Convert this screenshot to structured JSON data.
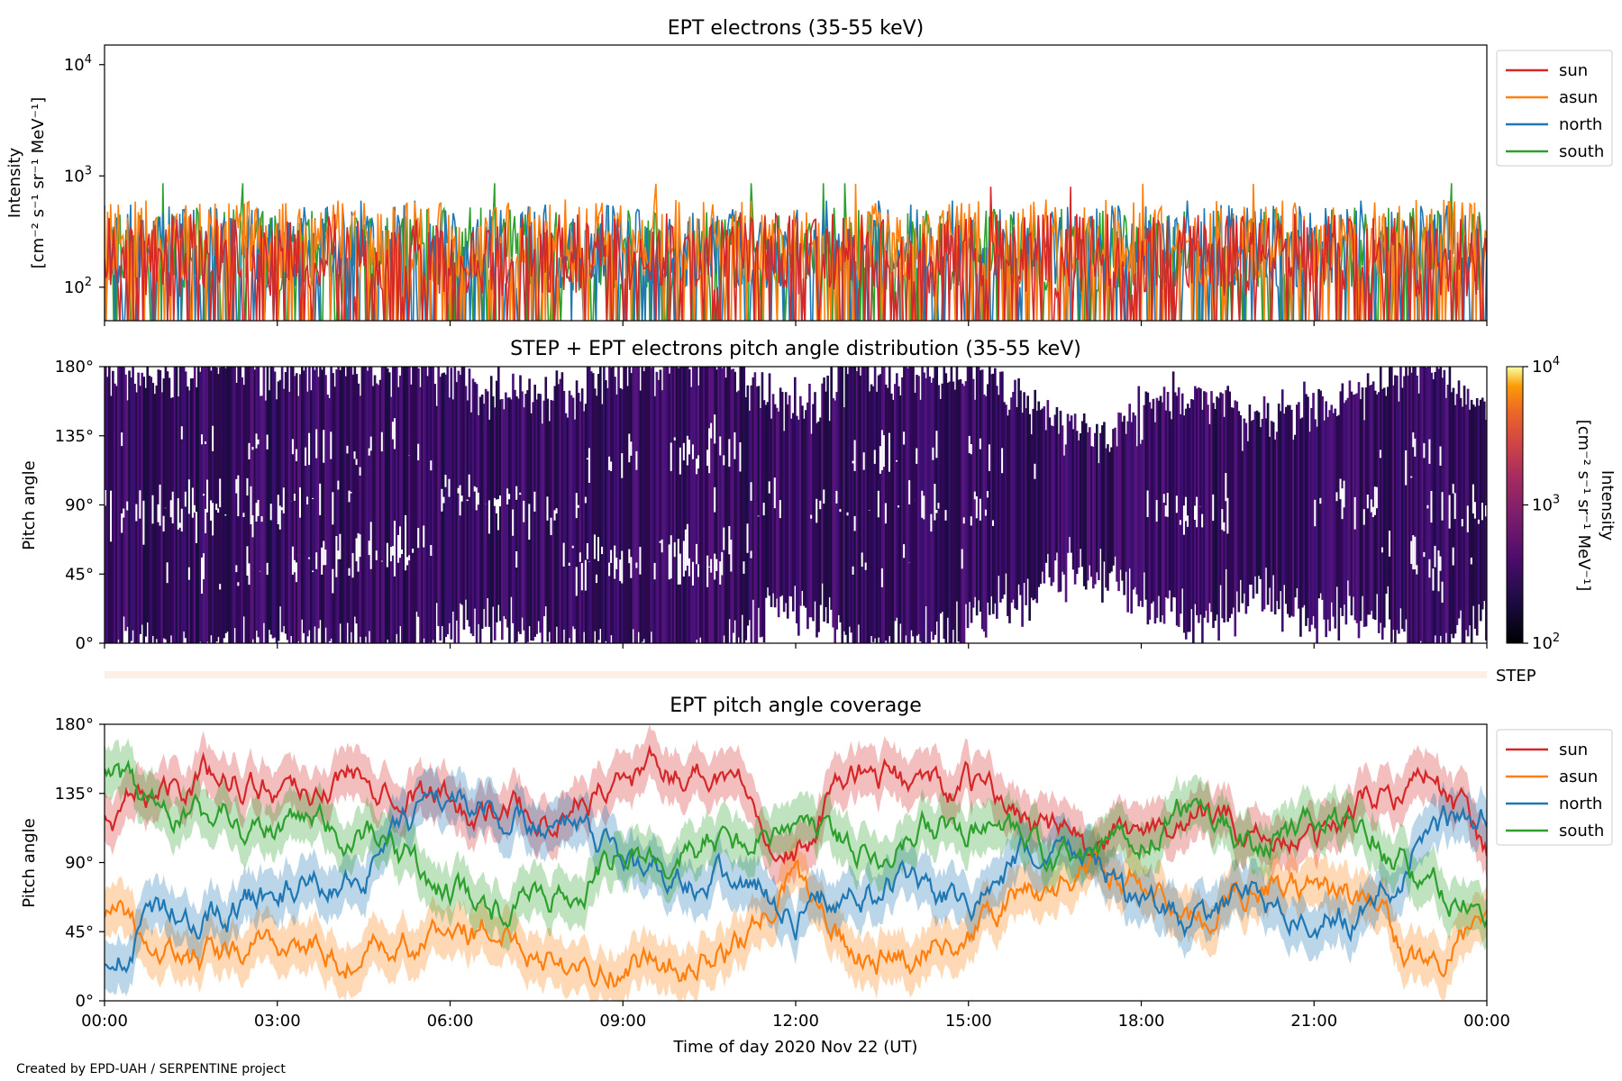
{
  "colors": {
    "sun": "#d62728",
    "asun": "#ff7f0e",
    "north": "#1f77b4",
    "south": "#2ca02c"
  },
  "footer": {
    "credit": "Created by EPD-UAH / SERPENTINE project"
  },
  "x_axis": {
    "label": "Time of day 2020 Nov 22 (UT)",
    "ticks": [
      "00:00",
      "03:00",
      "06:00",
      "09:00",
      "12:00",
      "15:00",
      "18:00",
      "21:00",
      "00:00"
    ]
  },
  "chart_data": [
    {
      "type": "line",
      "title": "EPT electrons (35-55 keV)",
      "ylabel_line1": "Intensity",
      "ylabel_line2": "[cm⁻² s⁻¹ sr⁻¹ MeV⁻¹]",
      "yscale": "log",
      "ylim": [
        50,
        15000
      ],
      "yticks": [
        {
          "value": 100,
          "base": "10",
          "exp": "2"
        },
        {
          "value": 1000,
          "base": "10",
          "exp": "3"
        },
        {
          "value": 10000,
          "base": "10",
          "exp": "4"
        }
      ],
      "xlim_hours": [
        0,
        24
      ],
      "legend": [
        "sun",
        "asun",
        "north",
        "south"
      ],
      "legend_position": "outside-right",
      "series_summary": [
        {
          "name": "sun",
          "typical": 150,
          "peak": 800
        },
        {
          "name": "asun",
          "typical": 200,
          "peak": 850
        },
        {
          "name": "north",
          "typical": 180,
          "peak": 600
        },
        {
          "name": "south",
          "typical": 170,
          "peak": 860
        }
      ]
    },
    {
      "type": "heatmap",
      "title": "STEP + EPT electrons pitch angle distribution (35-55 keV)",
      "ylabel": "Pitch angle",
      "ylim": [
        0,
        180
      ],
      "yticks": [
        "0°",
        "45°",
        "90°",
        "135°",
        "180°"
      ],
      "colorbar": {
        "label_line1": "Intensity",
        "label_line2": "[cm⁻² s⁻¹ sr⁻¹ MeV⁻¹]",
        "scale": "log",
        "range": [
          100,
          10000
        ],
        "ticks": [
          {
            "base": "10",
            "exp": "2"
          },
          {
            "base": "10",
            "exp": "3"
          },
          {
            "base": "10",
            "exp": "4"
          }
        ],
        "colormap": "inferno"
      }
    },
    {
      "type": "line",
      "title": "",
      "strip_label": "STEP"
    },
    {
      "type": "line",
      "title": "EPT pitch angle coverage",
      "ylabel": "Pitch angle",
      "ylim": [
        0,
        180
      ],
      "yticks": [
        "0°",
        "45°",
        "90°",
        "135°",
        "180°"
      ],
      "legend": [
        "sun",
        "asun",
        "north",
        "south"
      ],
      "legend_position": "outside-right",
      "series": [
        {
          "name": "sun",
          "x_hours": [
            0,
            1,
            2,
            3,
            4,
            5,
            6,
            7,
            8,
            9,
            10,
            11,
            12,
            13,
            14,
            15,
            16,
            17,
            18,
            19,
            20,
            21,
            22,
            23,
            24
          ],
          "values": [
            115,
            140,
            150,
            140,
            145,
            150,
            130,
            120,
            125,
            145,
            150,
            150,
            95,
            150,
            140,
            140,
            120,
            100,
            110,
            120,
            110,
            100,
            130,
            150,
            100
          ]
        },
        {
          "name": "asun",
          "x_hours": [
            0,
            1,
            2,
            3,
            4,
            5,
            6,
            7,
            8,
            9,
            10,
            11,
            12,
            13,
            14,
            15,
            16,
            17,
            18,
            19,
            20,
            21,
            22,
            23,
            24
          ],
          "values": [
            60,
            30,
            25,
            40,
            30,
            30,
            45,
            45,
            30,
            25,
            25,
            35,
            80,
            30,
            35,
            45,
            70,
            85,
            80,
            50,
            80,
            70,
            60,
            20,
            50
          ]
        },
        {
          "name": "north",
          "x_hours": [
            0,
            1,
            2,
            3,
            4,
            5,
            6,
            7,
            8,
            9,
            10,
            11,
            12,
            13,
            14,
            15,
            16,
            17,
            18,
            19,
            20,
            21,
            22,
            23,
            24
          ],
          "values": [
            30,
            55,
            60,
            70,
            75,
            100,
            135,
            120,
            110,
            90,
            85,
            80,
            60,
            70,
            75,
            60,
            90,
            100,
            60,
            50,
            70,
            50,
            60,
            110,
            120
          ]
        },
        {
          "name": "south",
          "x_hours": [
            0,
            1,
            2,
            3,
            4,
            5,
            6,
            7,
            8,
            9,
            10,
            11,
            12,
            13,
            14,
            15,
            16,
            17,
            18,
            19,
            20,
            21,
            22,
            23,
            24
          ],
          "values": [
            150,
            120,
            120,
            110,
            110,
            100,
            70,
            60,
            70,
            95,
            100,
            105,
            120,
            100,
            110,
            115,
            95,
            85,
            110,
            130,
            100,
            120,
            115,
            70,
            60
          ]
        }
      ]
    }
  ]
}
